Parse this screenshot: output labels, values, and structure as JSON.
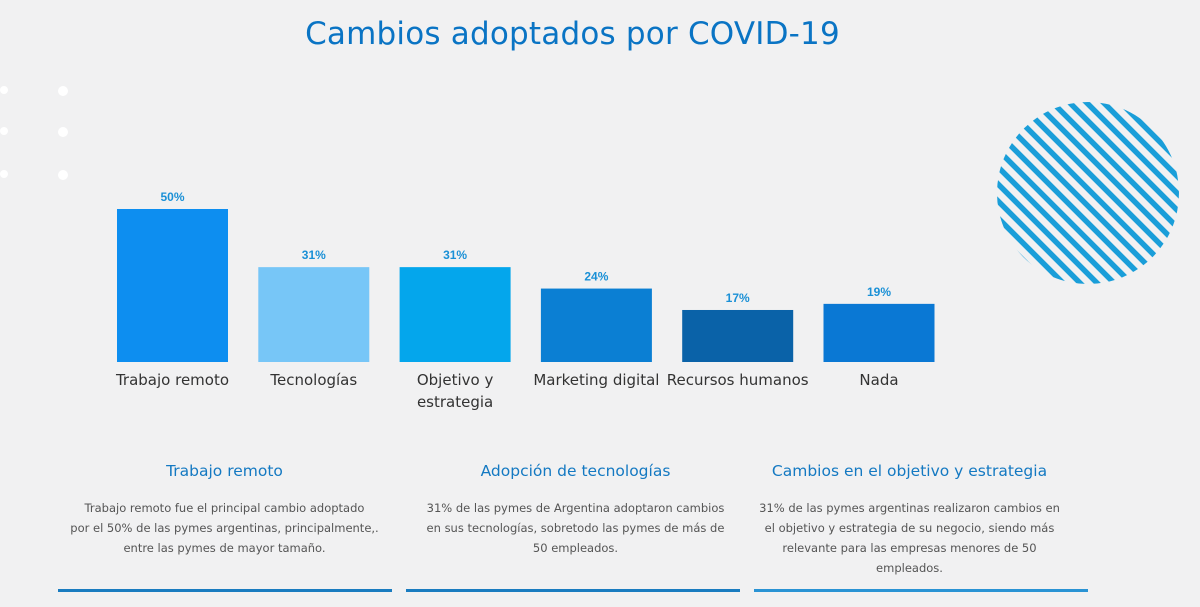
{
  "title": "Cambios adoptados por COVID-19",
  "colors": {
    "title": "#0a74c4",
    "bars": [
      "#0d8ef0",
      "#77c6f7",
      "#04a6ec",
      "#0b7fd3",
      "#0a62a8",
      "#0a78d4"
    ],
    "stripes": "#1a9ed9"
  },
  "chart_data": {
    "type": "bar",
    "title": "Cambios adoptados por COVID-19",
    "categories": [
      "Trabajo remoto",
      "Tecnologías",
      "Objetivo y estrategia",
      "Marketing digital",
      "Recursos humanos",
      "Nada"
    ],
    "category_lines": [
      [
        "Trabajo remoto"
      ],
      [
        "Tecnologías"
      ],
      [
        "Objetivo y",
        "estrategia"
      ],
      [
        "Marketing digital"
      ],
      [
        "Recursos humanos"
      ],
      [
        "Nada"
      ]
    ],
    "values": [
      50,
      31,
      31,
      24,
      17,
      19
    ],
    "value_labels": [
      "50%",
      "31%",
      "31%",
      "24%",
      "17%",
      "19%"
    ],
    "ylim": [
      0,
      50
    ],
    "grid": false,
    "legend": "none"
  },
  "info_cards": [
    {
      "heading": "Trabajo remoto",
      "lines": [
        "Trabajo remoto fue el principal cambio adoptado",
        "por el 50% de las pymes argentinas, principalmente,.",
        "entre las pymes de mayor tamaño."
      ]
    },
    {
      "heading": "Adopción de tecnologías",
      "lines": [
        "31% de las pymes de Argentina adoptaron cambios",
        "en sus tecnologías, sobretodo las pymes de más de",
        "50 empleados."
      ]
    },
    {
      "heading": "Cambios en el objetivo y estrategia",
      "lines": [
        "31% de las pymes argentinas realizaron cambios en",
        "el objetivo y estrategia de su negocio, siendo más",
        "relevante para las empresas menores de 50",
        "empleados."
      ]
    }
  ]
}
